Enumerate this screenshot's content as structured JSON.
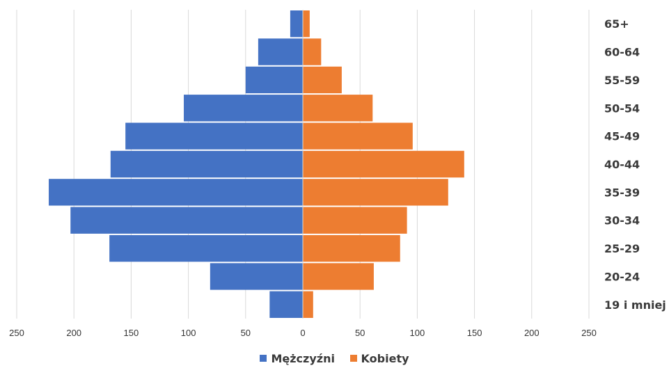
{
  "chart_data": {
    "type": "bar",
    "orientation": "horizontal",
    "subtype": "population-pyramid",
    "categories": [
      "19 i mniej",
      "20-24",
      "25-29",
      "30-34",
      "35-39",
      "40-44",
      "45-49",
      "50-54",
      "55-59",
      "60-64",
      "65+"
    ],
    "series": [
      {
        "name": "Mężczyźni",
        "color": "#4472C4",
        "values": [
          29,
          81,
          169,
          203,
          222,
          168,
          155,
          104,
          50,
          39,
          11
        ]
      },
      {
        "name": "Kobiety",
        "color": "#ED7D31",
        "values": [
          9,
          62,
          85,
          91,
          127,
          141,
          96,
          61,
          34,
          16,
          6
        ]
      }
    ],
    "xlim": [
      -250,
      250
    ],
    "x_tick_values": [
      -250,
      -200,
      -150,
      -100,
      -50,
      0,
      50,
      100,
      150,
      200,
      250
    ],
    "x_tick_labels": [
      "250",
      "200",
      "150",
      "100",
      "50",
      "0",
      "50",
      "100",
      "150",
      "200",
      "250"
    ],
    "grid": "vertical",
    "legend_position": "bottom",
    "title": "",
    "xlabel": "",
    "ylabel": ""
  }
}
